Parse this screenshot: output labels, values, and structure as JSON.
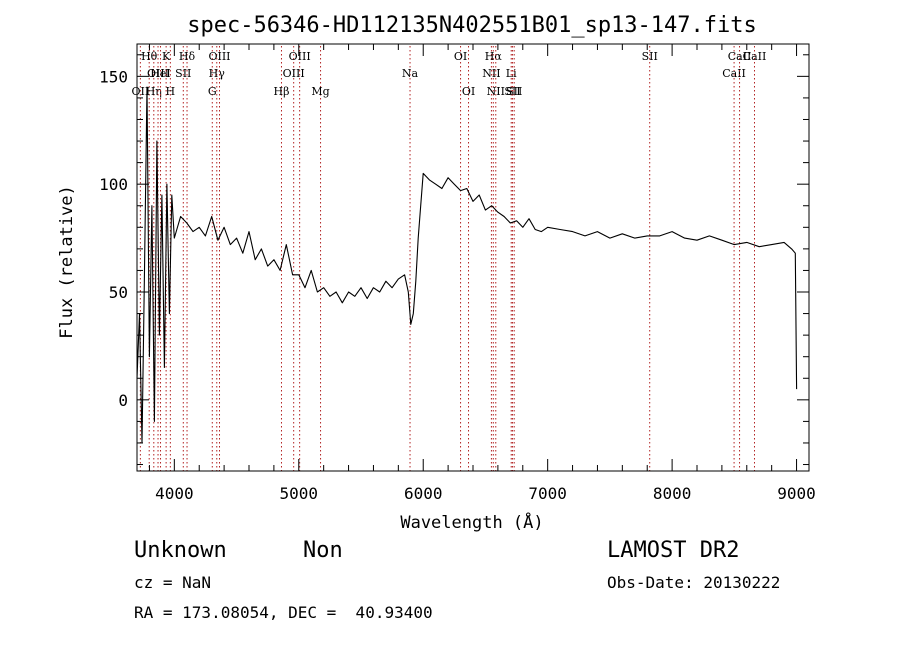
{
  "chart_data": {
    "type": "line",
    "title": "spec-56346-HD112135N402551B01_sp13-147.fits",
    "xlabel": "Wavelength (Å)",
    "ylabel": "Flux (relative)",
    "xlim": [
      3700,
      9100
    ],
    "ylim": [
      -33,
      165
    ],
    "x_ticks": [
      4000,
      5000,
      6000,
      7000,
      8000,
      9000
    ],
    "y_ticks": [
      0,
      50,
      100,
      150
    ],
    "series": [
      {
        "x": [
          3700,
          3720,
          3740,
          3760,
          3780,
          3800,
          3820,
          3840,
          3860,
          3880,
          3900,
          3920,
          3940,
          3960,
          3980,
          4000,
          4050,
          4100,
          4150,
          4200,
          4250,
          4300,
          4350,
          4400,
          4450,
          4500,
          4550,
          4600,
          4650,
          4700,
          4750,
          4800,
          4850,
          4900,
          4950,
          5000,
          5050,
          5100,
          5150,
          5200,
          5250,
          5300,
          5350,
          5400,
          5450,
          5500,
          5550,
          5600,
          5650,
          5700,
          5750,
          5800,
          5850,
          5880,
          5900,
          5920,
          5940,
          5960,
          5980,
          6000,
          6050,
          6100,
          6150,
          6200,
          6250,
          6300,
          6350,
          6400,
          6450,
          6500,
          6550,
          6600,
          6650,
          6700,
          6750,
          6800,
          6850,
          6900,
          6950,
          7000,
          7100,
          7200,
          7300,
          7400,
          7500,
          7600,
          7700,
          7800,
          7900,
          8000,
          8100,
          8200,
          8300,
          8400,
          8500,
          8600,
          8700,
          8800,
          8900,
          8960,
          8990,
          9000
        ],
        "y": [
          10,
          40,
          -20,
          60,
          145,
          20,
          90,
          -10,
          120,
          30,
          95,
          15,
          100,
          40,
          95,
          75,
          85,
          82,
          78,
          80,
          76,
          85,
          74,
          80,
          72,
          75,
          68,
          78,
          65,
          70,
          62,
          65,
          60,
          72,
          58,
          58,
          52,
          60,
          50,
          52,
          48,
          50,
          45,
          50,
          48,
          52,
          47,
          52,
          50,
          55,
          52,
          56,
          58,
          50,
          35,
          40,
          55,
          75,
          90,
          105,
          102,
          100,
          98,
          103,
          100,
          97,
          98,
          92,
          95,
          88,
          90,
          87,
          85,
          82,
          83,
          80,
          84,
          79,
          78,
          80,
          79,
          78,
          76,
          78,
          75,
          77,
          75,
          76,
          76,
          78,
          75,
          74,
          76,
          74,
          72,
          73,
          71,
          72,
          73,
          70,
          68,
          5
        ]
      }
    ],
    "line_markers": [
      {
        "x": 3727,
        "labels": [
          "OII"
        ],
        "row": 3
      },
      {
        "x": 3798,
        "labels": [
          "Hθ"
        ],
        "row": 1
      },
      {
        "x": 3835,
        "labels": [
          "Hη"
        ],
        "row": 3
      },
      {
        "x": 3869,
        "labels": [
          "OIII"
        ],
        "row": 2
      },
      {
        "x": 3889,
        "labels": [
          "HeI"
        ],
        "row": 2
      },
      {
        "x": 3934,
        "labels": [
          "K"
        ],
        "row": 1
      },
      {
        "x": 3968,
        "labels": [
          "H"
        ],
        "row": 3
      },
      {
        "x": 4072,
        "labels": [
          "SII"
        ],
        "row": 2
      },
      {
        "x": 4102,
        "labels": [
          "Hδ"
        ],
        "row": 1
      },
      {
        "x": 4305,
        "labels": [
          "G"
        ],
        "row": 3
      },
      {
        "x": 4341,
        "labels": [
          "Hγ"
        ],
        "row": 2
      },
      {
        "x": 4363,
        "labels": [
          "OIII"
        ],
        "row": 1
      },
      {
        "x": 4861,
        "labels": [
          "Hβ"
        ],
        "row": 3
      },
      {
        "x": 4959,
        "labels": [
          "OIII"
        ],
        "row": 2
      },
      {
        "x": 5007,
        "labels": [
          "OIII"
        ],
        "row": 1
      },
      {
        "x": 5175,
        "labels": [
          "Mg"
        ],
        "row": 3
      },
      {
        "x": 5894,
        "labels": [
          "Na"
        ],
        "row": 2
      },
      {
        "x": 6300,
        "labels": [
          "OI"
        ],
        "row": 1
      },
      {
        "x": 6364,
        "labels": [
          "OI"
        ],
        "row": 3
      },
      {
        "x": 6548,
        "labels": [
          "NII"
        ],
        "row": 2
      },
      {
        "x": 6563,
        "labels": [
          "Hα"
        ],
        "row": 1
      },
      {
        "x": 6583,
        "labels": [
          "NII"
        ],
        "row": 3
      },
      {
        "x": 6707,
        "labels": [
          "Li"
        ],
        "row": 2
      },
      {
        "x": 6717,
        "labels": [
          "SII"
        ],
        "row": 3
      },
      {
        "x": 6731,
        "labels": [
          "SII"
        ],
        "row": 3
      },
      {
        "x": 7820,
        "labels": [
          "SII"
        ],
        "row": 1
      },
      {
        "x": 8498,
        "labels": [
          "CaII"
        ],
        "row": 2
      },
      {
        "x": 8542,
        "labels": [
          "CaII"
        ],
        "row": 1
      },
      {
        "x": 8662,
        "labels": [
          "CaII"
        ],
        "row": 1
      }
    ],
    "colors": {
      "spectrum": "#000000",
      "line_markers": "#b22222",
      "axes": "#000000"
    }
  },
  "info": {
    "class_name": "Unknown",
    "subclass": "Non",
    "survey": "LAMOST DR2",
    "cz": "cz = NaN",
    "obs_date": "Obs-Date: 20130222",
    "coords": "RA = 173.08054, DEC =  40.93400"
  }
}
